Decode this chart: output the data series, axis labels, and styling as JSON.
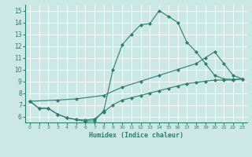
{
  "xlabel": "Humidex (Indice chaleur)",
  "line_color": "#2e7d6e",
  "bg_color": "#cce8e4",
  "grid_color": "#ffffff",
  "xmin": -0.5,
  "xmax": 23.5,
  "ymin": 5.5,
  "ymax": 15.5,
  "yticks": [
    6,
    7,
    8,
    9,
    10,
    11,
    12,
    13,
    14,
    15
  ],
  "xticks": [
    0,
    1,
    2,
    3,
    4,
    5,
    6,
    7,
    8,
    9,
    10,
    11,
    12,
    13,
    14,
    15,
    16,
    17,
    18,
    19,
    20,
    21,
    22,
    23
  ],
  "curve1_x": [
    0,
    1,
    2,
    3,
    4,
    5,
    6,
    7,
    8,
    9,
    10,
    11,
    12,
    13,
    14,
    15,
    16,
    17,
    18,
    19,
    20,
    21,
    22,
    23
  ],
  "curve1_y": [
    7.3,
    6.7,
    6.7,
    6.2,
    5.9,
    5.75,
    5.6,
    5.65,
    6.5,
    10.0,
    12.1,
    13.0,
    13.8,
    13.9,
    15.0,
    14.5,
    14.0,
    12.3,
    11.5,
    10.5,
    9.5,
    9.2,
    9.15,
    9.2
  ],
  "curve2_x": [
    0,
    3,
    5,
    8,
    10,
    12,
    14,
    16,
    18,
    19,
    20,
    21,
    22,
    23
  ],
  "curve2_y": [
    7.3,
    7.4,
    7.5,
    7.8,
    8.5,
    9.0,
    9.5,
    10.0,
    10.5,
    11.0,
    11.5,
    10.5,
    9.5,
    9.2
  ],
  "curve3_x": [
    0,
    1,
    2,
    3,
    4,
    5,
    6,
    7,
    8,
    9,
    10,
    11,
    12,
    13,
    14,
    15,
    16,
    17,
    18,
    19,
    20,
    21,
    22,
    23
  ],
  "curve3_y": [
    7.3,
    6.7,
    6.7,
    6.2,
    5.9,
    5.75,
    5.7,
    5.8,
    6.4,
    7.0,
    7.4,
    7.6,
    7.8,
    8.0,
    8.2,
    8.4,
    8.6,
    8.8,
    8.9,
    9.0,
    9.1,
    9.1,
    9.1,
    9.2
  ]
}
